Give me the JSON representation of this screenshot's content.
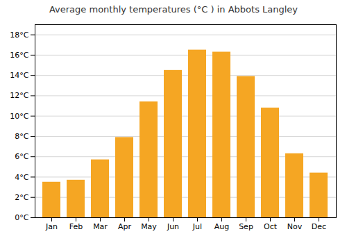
{
  "chart_data": {
    "type": "bar",
    "title": "Average monthly temperatures (°C ) in Abbots Langley",
    "categories": [
      "Jan",
      "Feb",
      "Mar",
      "Apr",
      "May",
      "Jun",
      "Jul",
      "Aug",
      "Sep",
      "Oct",
      "Nov",
      "Dec"
    ],
    "values": [
      3.5,
      3.7,
      5.7,
      7.9,
      11.4,
      14.5,
      16.5,
      16.3,
      13.9,
      10.8,
      6.3,
      4.4
    ],
    "color": "#F5A623",
    "ylim": [
      0,
      19
    ],
    "yticks": [
      {
        "value": 0,
        "label": "0°C"
      },
      {
        "value": 2,
        "label": "2°C"
      },
      {
        "value": 4,
        "label": "4°C"
      },
      {
        "value": 6,
        "label": "6°C"
      },
      {
        "value": 8,
        "label": "8°C"
      },
      {
        "value": 10,
        "label": "10°C"
      },
      {
        "value": 12,
        "label": "12°C"
      },
      {
        "value": 14,
        "label": "14°C"
      },
      {
        "value": 16,
        "label": "16°C"
      },
      {
        "value": 18,
        "label": "18°C"
      }
    ],
    "grid": true
  }
}
